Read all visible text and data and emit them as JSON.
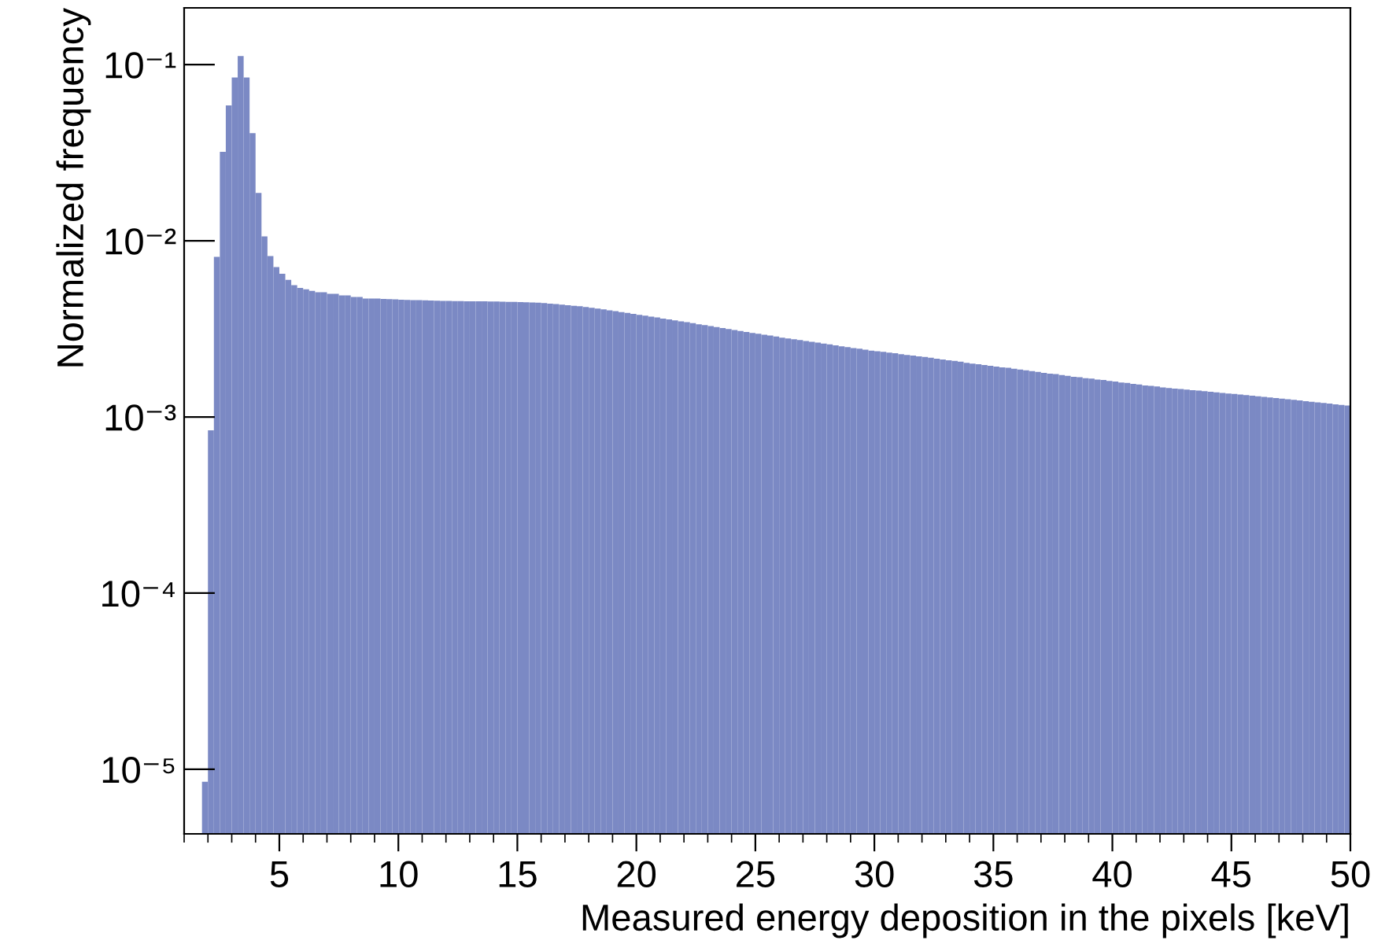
{
  "chart_data": {
    "type": "histogram",
    "xlabel": "Measured energy deposition in the pixels [keV]",
    "ylabel": "Normalized frequency",
    "color": "#7b89c4",
    "log": "y",
    "grid": false,
    "legend": false,
    "xlim": [
      1,
      50
    ],
    "xticks": [
      5,
      10,
      15,
      20,
      25,
      30,
      35,
      40,
      45,
      50
    ],
    "ylim": [
      4.3e-06,
      0.21
    ],
    "yticks": [
      {
        "value": 1e-05,
        "label": "10⁻⁵"
      },
      {
        "value": 0.0001,
        "label": "10⁻⁴"
      },
      {
        "value": 0.001,
        "label": "10⁻³"
      },
      {
        "value": 0.01,
        "label": "10⁻²"
      },
      {
        "value": 0.1,
        "label": "10⁻¹"
      }
    ],
    "bins": [
      1.75,
      2,
      2.25,
      2.5,
      2.75,
      3,
      3.25,
      3.5,
      3.75,
      4,
      4.25,
      4.5,
      4.75,
      5,
      5.25,
      5.5,
      5.75,
      6,
      6.25,
      6.5,
      6.75,
      7,
      7.25,
      7.5,
      7.75,
      8,
      8.25,
      8.5,
      8.75,
      9,
      9.25,
      9.5,
      9.75,
      10,
      10.25,
      10.5,
      10.75,
      11,
      11.25,
      11.5,
      11.75,
      12,
      12.25,
      12.5,
      12.75,
      13,
      13.25,
      13.5,
      13.75,
      14,
      14.25,
      14.5,
      14.75,
      15,
      15.25,
      15.5,
      15.75,
      16,
      16.25,
      16.5,
      16.75,
      17,
      17.25,
      17.5,
      17.75,
      18,
      18.25,
      18.5,
      18.75,
      19,
      19.25,
      19.5,
      19.75,
      20,
      20.25,
      20.5,
      20.75,
      21,
      21.25,
      21.5,
      21.75,
      22,
      22.25,
      22.5,
      22.75,
      23,
      23.25,
      23.5,
      23.75,
      24,
      24.25,
      24.5,
      24.75,
      25,
      25.25,
      25.5,
      25.75,
      26,
      26.25,
      26.5,
      26.75,
      27,
      27.25,
      27.5,
      27.75,
      28,
      28.25,
      28.5,
      28.75,
      29,
      29.25,
      29.5,
      29.75,
      30,
      30.25,
      30.5,
      30.75,
      31,
      31.25,
      31.5,
      31.75,
      32,
      32.25,
      32.5,
      32.75,
      33,
      33.25,
      33.5,
      33.75,
      34,
      34.25,
      34.5,
      34.75,
      35,
      35.25,
      35.5,
      35.75,
      36,
      36.25,
      36.5,
      36.75,
      37,
      37.25,
      37.5,
      37.75,
      38,
      38.25,
      38.5,
      38.75,
      39,
      39.25,
      39.5,
      39.75,
      40,
      40.25,
      40.5,
      40.75,
      41,
      41.25,
      41.5,
      41.75,
      42,
      42.25,
      42.5,
      42.75,
      43,
      43.25,
      43.5,
      43.75,
      44,
      44.25,
      44.5,
      44.75,
      45,
      45.25,
      45.5,
      45.75,
      46,
      46.25,
      46.5,
      46.75,
      47,
      47.25,
      47.5,
      47.75,
      48,
      48.25,
      48.5,
      48.75,
      49,
      49.25,
      49.5,
      49.75,
      50
    ],
    "values": [
      8.5e-06,
      0.00084,
      0.0081,
      0.032,
      0.0587,
      0.0845,
      0.112,
      0.0845,
      0.0408,
      0.0187,
      0.0106,
      0.0082,
      0.0071,
      0.0065,
      0.006,
      0.0056,
      0.0054,
      0.0053,
      0.0052,
      0.0051,
      0.0051,
      0.005,
      0.005,
      0.0049,
      0.0049,
      0.0048,
      0.0048,
      0.0047,
      0.0047,
      0.0047,
      0.00468,
      0.00466,
      0.00465,
      0.00463,
      0.00462,
      0.00461,
      0.0046,
      0.00459,
      0.00458,
      0.00457,
      0.00456,
      0.00456,
      0.00455,
      0.00455,
      0.00454,
      0.00454,
      0.00453,
      0.00453,
      0.00452,
      0.00452,
      0.00451,
      0.0045,
      0.0045,
      0.00449,
      0.00448,
      0.00447,
      0.00445,
      0.00443,
      0.0044,
      0.00437,
      0.00434,
      0.00431,
      0.00428,
      0.00425,
      0.00421,
      0.00417,
      0.00412,
      0.00408,
      0.00403,
      0.00399,
      0.00394,
      0.0039,
      0.00385,
      0.0038,
      0.00376,
      0.00371,
      0.00367,
      0.00362,
      0.00358,
      0.00353,
      0.00349,
      0.00345,
      0.00341,
      0.00336,
      0.00332,
      0.00328,
      0.00324,
      0.0032,
      0.00316,
      0.00312,
      0.00308,
      0.00304,
      0.003,
      0.00297,
      0.00293,
      0.0029,
      0.00286,
      0.00282,
      0.00279,
      0.00276,
      0.00273,
      0.0027,
      0.00267,
      0.00264,
      0.00261,
      0.00258,
      0.00255,
      0.00252,
      0.00249,
      0.00246,
      0.00244,
      0.00241,
      0.00238,
      0.00236,
      0.00234,
      0.00232,
      0.0023,
      0.00227,
      0.00225,
      0.00223,
      0.00221,
      0.00219,
      0.00217,
      0.00214,
      0.00212,
      0.0021,
      0.00208,
      0.00206,
      0.00203,
      0.00201,
      0.00199,
      0.00197,
      0.00195,
      0.00193,
      0.00191,
      0.0019,
      0.00188,
      0.00186,
      0.00184,
      0.00182,
      0.0018,
      0.00178,
      0.00176,
      0.00175,
      0.00173,
      0.00171,
      0.00169,
      0.00168,
      0.00166,
      0.00165,
      0.00163,
      0.00162,
      0.0016,
      0.00159,
      0.00157,
      0.00156,
      0.00154,
      0.00153,
      0.00151,
      0.0015,
      0.00149,
      0.00147,
      0.00146,
      0.00145,
      0.00144,
      0.00143,
      0.00142,
      0.00141,
      0.0014,
      0.00139,
      0.00138,
      0.00137,
      0.00136,
      0.00135,
      0.00134,
      0.00133,
      0.00132,
      0.00131,
      0.0013,
      0.00129,
      0.00128,
      0.00127,
      0.00126,
      0.00125,
      0.00124,
      0.00123,
      0.00122,
      0.00121,
      0.0012,
      0.00119,
      0.00118,
      0.00117,
      0.00116
    ]
  }
}
